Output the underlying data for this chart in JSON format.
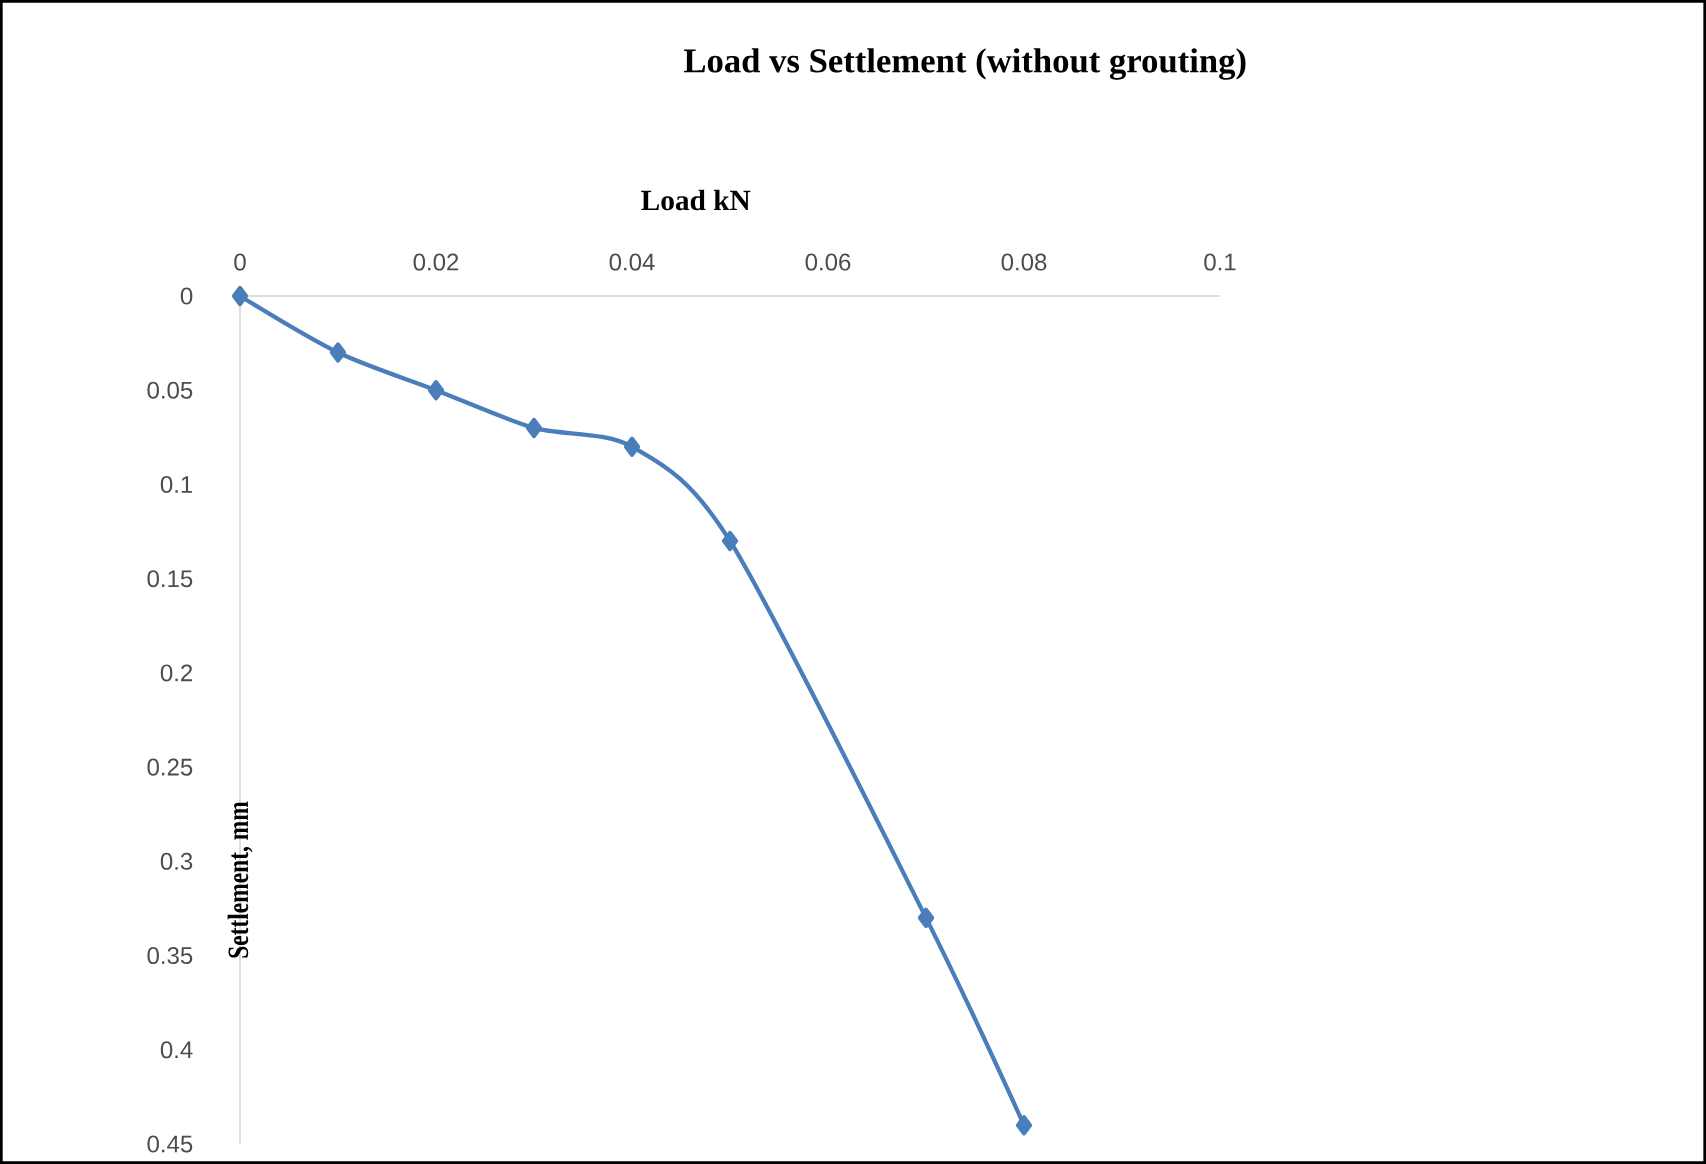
{
  "chart_data": {
    "type": "line",
    "title": "Load vs Settlement (without grouting)",
    "xlabel": "Load kN",
    "ylabel": "Settlement, mm",
    "x": [
      0,
      0.01,
      0.02,
      0.03,
      0.04,
      0.05,
      0.07,
      0.08
    ],
    "series": [
      {
        "color": "#4a7ebb",
        "values": [
          0,
          0.03,
          0.05,
          0.07,
          0.08,
          0.13,
          0.33,
          0.44
        ]
      }
    ],
    "xlim": [
      0,
      0.1
    ],
    "ylim": [
      0.45,
      0
    ],
    "xticks": [
      0,
      0.02,
      0.04,
      0.06,
      0.08,
      0.1
    ],
    "yticks": [
      0,
      0.05,
      0.1,
      0.15,
      0.2,
      0.25,
      0.3,
      0.35,
      0.4,
      0.45
    ],
    "marker": "diamond",
    "line_style": "solid"
  }
}
